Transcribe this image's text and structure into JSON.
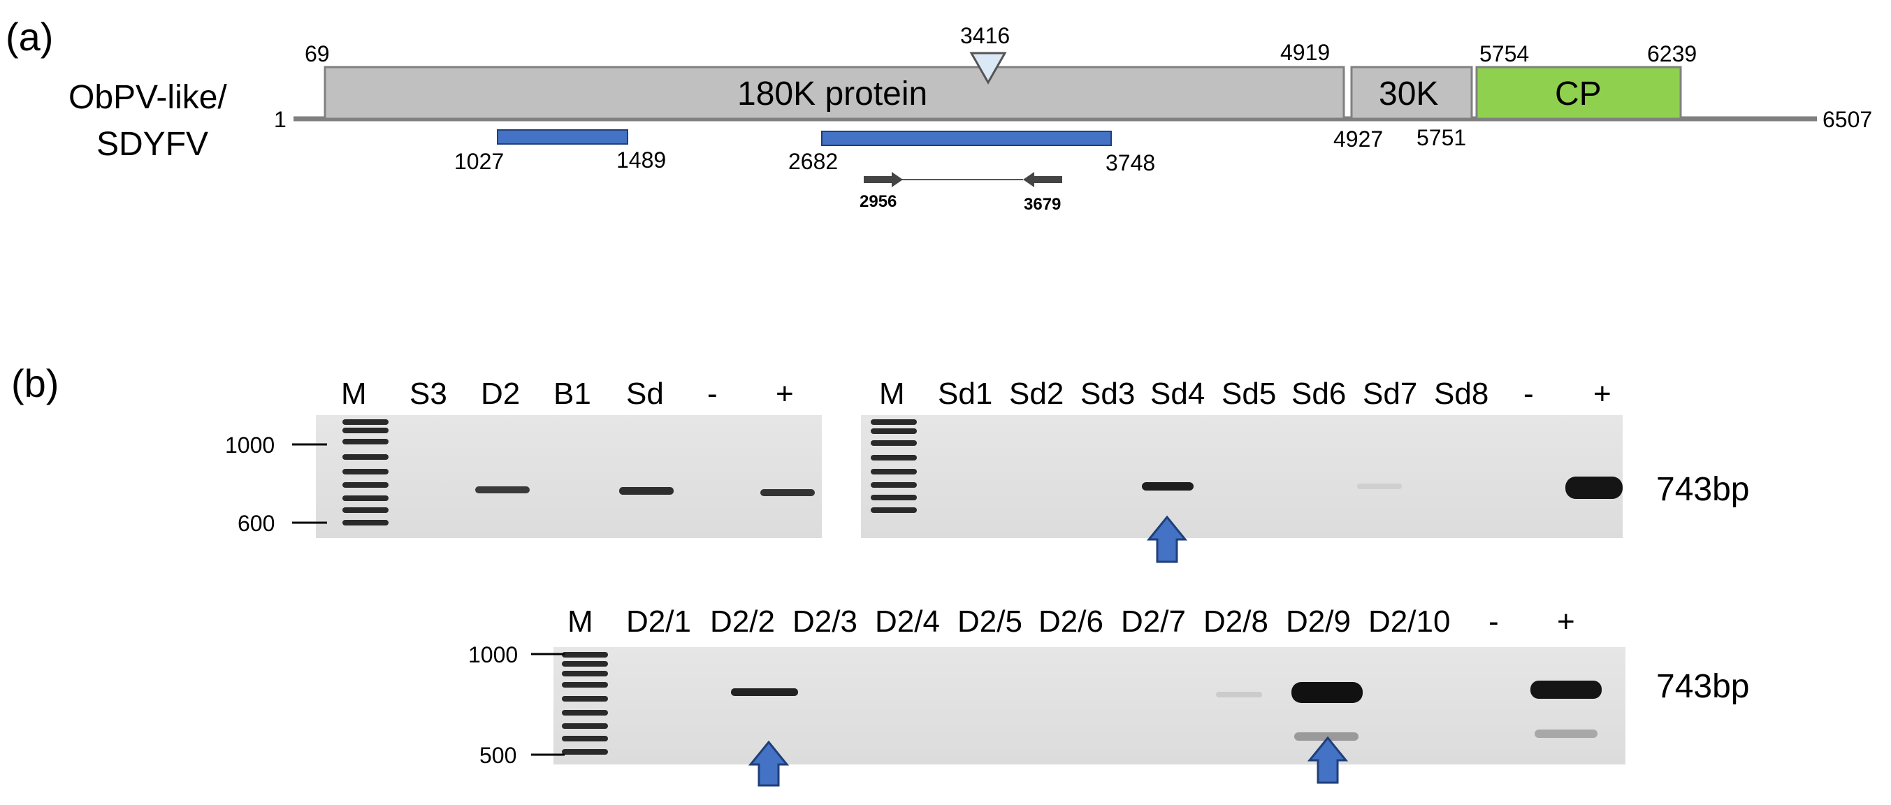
{
  "panel_a": {
    "label": "(a)",
    "virus_name_line1": "ObPV-like/",
    "virus_name_line2": "SDYFV",
    "genome_start": "1",
    "genome_end": "6507",
    "orf_180k": {
      "label": "180K protein",
      "start": "69",
      "end": "4919"
    },
    "orf_30k": {
      "label": "30K",
      "start": "4927",
      "end": "5751"
    },
    "orf_cp": {
      "label": "CP",
      "start": "5754",
      "end": "6239"
    },
    "marker_position": "3416",
    "blue_region_1": {
      "start": "1027",
      "end": "1489"
    },
    "blue_region_2": {
      "start": "2682",
      "end": "3748"
    },
    "primer_forward": "2956",
    "primer_reverse": "3679",
    "colors": {
      "orf_grey": "#c0c0c0",
      "cp_green": "#8fd14f",
      "region_blue": "#4472c4",
      "marker_fill": "#dbe9f6"
    }
  },
  "panel_b": {
    "label": "(b)",
    "gel1": {
      "lanes": [
        "M",
        "S3",
        "D2",
        "B1",
        "Sd",
        "-",
        "+"
      ],
      "ladder_marks": [
        "1000",
        "600"
      ]
    },
    "gel2": {
      "lanes": [
        "M",
        "Sd1",
        "Sd2",
        "Sd3",
        "Sd4",
        "Sd5",
        "Sd6",
        "Sd7",
        "Sd8",
        "-",
        "+"
      ],
      "band_label": "743bp"
    },
    "gel3": {
      "lanes": [
        "M",
        "D2/1",
        "D2/2",
        "D2/3",
        "D2/4",
        "D2/5",
        "D2/6",
        "D2/7",
        "D2/8",
        "D2/9",
        "D2/10",
        "-",
        "+"
      ],
      "ladder_marks": [
        "1000",
        "500"
      ],
      "band_label": "743bp"
    },
    "colors": {
      "gel_bg": "#e2e2e2",
      "arrow_blue": "#4472c4"
    }
  }
}
